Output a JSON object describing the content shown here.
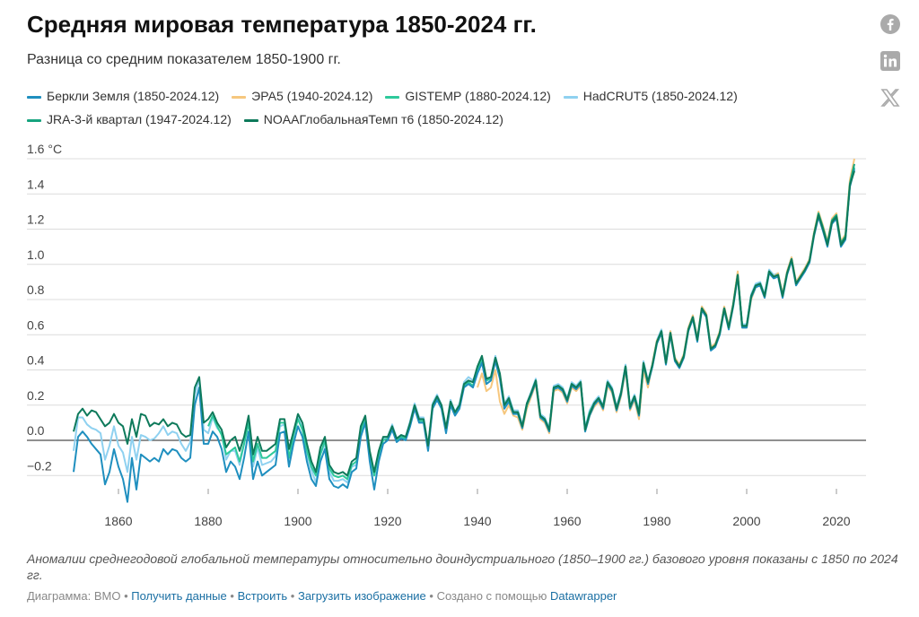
{
  "title": "Средняя мировая температура 1850-2024 гг.",
  "subtitle": "Разница со средним показателем 1850-1900 гг.",
  "social": [
    {
      "icon": "facebook-icon"
    },
    {
      "icon": "linkedin-icon"
    },
    {
      "icon": "x-twitter-icon"
    }
  ],
  "note": "Аномалии среднегодовой глобальной температуры относительно доиндустриального (1850–1900 гг.) базового уровня показаны с 1850 по 2024 гг.",
  "footer": {
    "source": "Диаграмма: ВМО",
    "get_data": "Получить данные",
    "embed": "Встроить",
    "download": "Загрузить изображение",
    "created_with": "Создано с помощью",
    "datawrapper": "Datawrapper",
    "sep": "•"
  },
  "chart_data": {
    "type": "line",
    "title": "Средняя мировая температура 1850-2024 гг.",
    "subtitle": "Разница со средним показателем 1850-1900 гг.",
    "ylabel_unit": "°C",
    "xlim": [
      1850,
      2024
    ],
    "ylim": [
      -0.3,
      1.6
    ],
    "y_ticks": [
      -0.2,
      0.0,
      0.2,
      0.4,
      0.6,
      0.8,
      1.0,
      1.2,
      1.4,
      1.6
    ],
    "y_tick_labels": [
      "−0.2",
      "0.0",
      "0.2",
      "0.4",
      "0.6",
      "0.8",
      "1.0",
      "1.2",
      "1.4",
      "1.6 °C"
    ],
    "x_ticks": [
      1860,
      1880,
      1900,
      1920,
      1940,
      1960,
      1980,
      2000,
      2020
    ],
    "x_tick_labels": [
      "1860",
      "1880",
      "1900",
      "1920",
      "1940",
      "1960",
      "1980",
      "2000",
      "2020"
    ],
    "grid": true,
    "legend_placement": "top",
    "series": [
      {
        "name": "Беркли Земля (1850-2024.12)",
        "color": "#1f8fbf",
        "start": 1850,
        "values": [
          -0.18,
          0.02,
          0.05,
          0.02,
          -0.02,
          -0.05,
          -0.08,
          -0.25,
          -0.18,
          -0.05,
          -0.15,
          -0.22,
          -0.35,
          -0.1,
          -0.28,
          -0.08,
          -0.1,
          -0.12,
          -0.1,
          -0.12,
          -0.05,
          -0.08,
          -0.05,
          -0.06,
          -0.1,
          -0.12,
          -0.1,
          0.2,
          0.3,
          -0.02,
          -0.02,
          0.05,
          0.02,
          -0.05,
          -0.18,
          -0.12,
          -0.15,
          -0.22,
          -0.1,
          0.05,
          -0.22,
          -0.12,
          -0.2,
          -0.18,
          -0.16,
          -0.14,
          0.04,
          0.05,
          -0.15,
          -0.02,
          0.08,
          0.02,
          -0.12,
          -0.22,
          -0.26,
          -0.12,
          -0.05,
          -0.22,
          -0.26,
          -0.27,
          -0.25,
          -0.27,
          -0.18,
          -0.16,
          0.02,
          0.1,
          -0.12,
          -0.28,
          -0.12,
          -0.02,
          0.0,
          0.06,
          -0.01,
          0.01,
          0.0,
          0.08,
          0.18,
          0.1,
          0.1,
          -0.06,
          0.18,
          0.23,
          0.18,
          0.04,
          0.2,
          0.14,
          0.18,
          0.3,
          0.32,
          0.3,
          0.38,
          0.44,
          0.32,
          0.34,
          0.45,
          0.35,
          0.18,
          0.22,
          0.15,
          0.15,
          0.07,
          0.2,
          0.26,
          0.33,
          0.13,
          0.11,
          0.05,
          0.29,
          0.3,
          0.28,
          0.22,
          0.31,
          0.29,
          0.32,
          0.05,
          0.14,
          0.2,
          0.23,
          0.18,
          0.32,
          0.28,
          0.17,
          0.26,
          0.41,
          0.18,
          0.24,
          0.14,
          0.43,
          0.32,
          0.42,
          0.55,
          0.61,
          0.43,
          0.6,
          0.45,
          0.41,
          0.47,
          0.62,
          0.69,
          0.56,
          0.74,
          0.7,
          0.51,
          0.53,
          0.6,
          0.74,
          0.63,
          0.76,
          0.93,
          0.64,
          0.64,
          0.81,
          0.87,
          0.88,
          0.81,
          0.95,
          0.92,
          0.93,
          0.81,
          0.94,
          1.02,
          0.88,
          0.92,
          0.96,
          1.01,
          1.16,
          1.27,
          1.19,
          1.1,
          1.23,
          1.26,
          1.1,
          1.14,
          1.44,
          1.54
        ]
      },
      {
        "name": "ЭРА5 (1940-2024.12)",
        "color": "#f6c77e",
        "start": 1940,
        "values": [
          0.3,
          0.38,
          0.28,
          0.3,
          0.4,
          0.22,
          0.15,
          0.2,
          0.14,
          0.13,
          0.06,
          0.18,
          0.25,
          0.32,
          0.12,
          0.1,
          0.04,
          0.28,
          0.29,
          0.27,
          0.21,
          0.3,
          0.28,
          0.31,
          0.05,
          0.14,
          0.19,
          0.22,
          0.17,
          0.31,
          0.27,
          0.16,
          0.25,
          0.4,
          0.17,
          0.23,
          0.12,
          0.4,
          0.3,
          0.44,
          0.57,
          0.6,
          0.45,
          0.62,
          0.47,
          0.43,
          0.49,
          0.64,
          0.71,
          0.58,
          0.76,
          0.72,
          0.53,
          0.55,
          0.62,
          0.76,
          0.65,
          0.78,
          0.96,
          0.64,
          0.64,
          0.8,
          0.87,
          0.88,
          0.81,
          0.96,
          0.93,
          0.95,
          0.83,
          0.96,
          1.04,
          0.9,
          0.94,
          0.98,
          1.03,
          1.18,
          1.3,
          1.22,
          1.13,
          1.26,
          1.29,
          1.13,
          1.17,
          1.48,
          1.6
        ]
      },
      {
        "name": "GISTEMP (1880-2024.12)",
        "color": "#2ec99b",
        "start": 1880,
        "values": [
          0.08,
          0.14,
          0.08,
          0.03,
          -0.08,
          -0.06,
          -0.04,
          -0.12,
          -0.02,
          0.1,
          -0.12,
          -0.02,
          -0.1,
          -0.1,
          -0.08,
          -0.06,
          0.1,
          0.1,
          -0.1,
          0.03,
          0.12,
          0.06,
          -0.06,
          -0.15,
          -0.2,
          -0.08,
          0.0,
          -0.16,
          -0.2,
          -0.21,
          -0.2,
          -0.22,
          -0.14,
          -0.12,
          0.05,
          0.12,
          -0.08,
          -0.2,
          -0.08,
          0.0,
          0.01,
          0.07,
          0.0,
          0.02,
          0.01,
          0.09,
          0.19,
          0.11,
          0.11,
          -0.05,
          0.19,
          0.24,
          0.19,
          0.05,
          0.21,
          0.15,
          0.19,
          0.31,
          0.33,
          0.31,
          0.4,
          0.46,
          0.34,
          0.35,
          0.46,
          0.36,
          0.2,
          0.23,
          0.16,
          0.16,
          0.08,
          0.2,
          0.27,
          0.34,
          0.14,
          0.12,
          0.06,
          0.3,
          0.31,
          0.29,
          0.23,
          0.32,
          0.3,
          0.33,
          0.06,
          0.16,
          0.21,
          0.24,
          0.19,
          0.33,
          0.29,
          0.18,
          0.27,
          0.42,
          0.19,
          0.25,
          0.16,
          0.44,
          0.33,
          0.42,
          0.56,
          0.62,
          0.44,
          0.61,
          0.46,
          0.42,
          0.48,
          0.63,
          0.7,
          0.57,
          0.75,
          0.71,
          0.52,
          0.54,
          0.61,
          0.75,
          0.64,
          0.77,
          0.94,
          0.65,
          0.65,
          0.82,
          0.88,
          0.89,
          0.82,
          0.96,
          0.93,
          0.94,
          0.82,
          0.95,
          1.03,
          0.89,
          0.93,
          0.97,
          1.02,
          1.17,
          1.28,
          1.2,
          1.11,
          1.24,
          1.27,
          1.11,
          1.15,
          1.45,
          1.55
        ]
      },
      {
        "name": "HadCRUT5 (1850-2024.12)",
        "color": "#8fd1f0",
        "start": 1850,
        "values": [
          -0.06,
          0.13,
          0.13,
          0.09,
          0.07,
          0.06,
          0.04,
          -0.11,
          -0.03,
          0.08,
          -0.03,
          -0.07,
          -0.18,
          0.02,
          -0.11,
          0.03,
          0.02,
          0.0,
          0.01,
          0.04,
          0.08,
          0.03,
          0.05,
          0.04,
          -0.02,
          -0.06,
          -0.01,
          0.26,
          0.35,
          0.06,
          0.04,
          0.13,
          0.07,
          0.04,
          -0.11,
          -0.06,
          -0.06,
          -0.14,
          -0.02,
          0.11,
          -0.15,
          -0.04,
          -0.14,
          -0.13,
          -0.12,
          -0.09,
          0.08,
          0.09,
          -0.13,
          0.02,
          0.13,
          0.07,
          -0.08,
          -0.17,
          -0.24,
          -0.08,
          -0.02,
          -0.18,
          -0.23,
          -0.23,
          -0.22,
          -0.24,
          -0.15,
          -0.14,
          0.06,
          0.14,
          -0.09,
          -0.2,
          -0.07,
          0.01,
          0.02,
          0.09,
          0.01,
          0.03,
          0.02,
          0.11,
          0.21,
          0.13,
          0.13,
          -0.04,
          0.21,
          0.26,
          0.2,
          0.07,
          0.23,
          0.16,
          0.21,
          0.33,
          0.36,
          0.34,
          0.4,
          0.46,
          0.34,
          0.36,
          0.48,
          0.37,
          0.21,
          0.25,
          0.17,
          0.17,
          0.09,
          0.21,
          0.28,
          0.35,
          0.15,
          0.13,
          0.07,
          0.31,
          0.32,
          0.3,
          0.24,
          0.33,
          0.31,
          0.34,
          0.07,
          0.17,
          0.22,
          0.25,
          0.2,
          0.34,
          0.3,
          0.19,
          0.28,
          0.43,
          0.2,
          0.26,
          0.17,
          0.45,
          0.34,
          0.43,
          0.57,
          0.63,
          0.45,
          0.62,
          0.47,
          0.43,
          0.49,
          0.64,
          0.71,
          0.58,
          0.76,
          0.72,
          0.53,
          0.55,
          0.62,
          0.76,
          0.65,
          0.78,
          0.95,
          0.66,
          0.66,
          0.83,
          0.89,
          0.9,
          0.83,
          0.97,
          0.94,
          0.95,
          0.83,
          0.96,
          1.04,
          0.9,
          0.94,
          0.98,
          1.03,
          1.18,
          1.29,
          1.21,
          1.12,
          1.25,
          1.28,
          1.12,
          1.16,
          1.46,
          1.55
        ]
      },
      {
        "name": "JRA-3-й квартал (1947-2024.12)",
        "color": "#17a47f",
        "start": 1947,
        "values": [
          0.23,
          0.16,
          0.16,
          0.08,
          0.2,
          0.27,
          0.34,
          0.14,
          0.12,
          0.06,
          0.3,
          0.31,
          0.29,
          0.23,
          0.32,
          0.3,
          0.33,
          0.06,
          0.15,
          0.21,
          0.24,
          0.19,
          0.33,
          0.29,
          0.18,
          0.27,
          0.42,
          0.19,
          0.25,
          0.15,
          0.43,
          0.33,
          0.43,
          0.56,
          0.62,
          0.44,
          0.61,
          0.46,
          0.42,
          0.48,
          0.63,
          0.7,
          0.57,
          0.75,
          0.71,
          0.52,
          0.54,
          0.61,
          0.75,
          0.64,
          0.77,
          0.94,
          0.65,
          0.65,
          0.82,
          0.88,
          0.89,
          0.82,
          0.96,
          0.93,
          0.94,
          0.82,
          0.95,
          1.03,
          0.89,
          0.93,
          0.97,
          1.02,
          1.17,
          1.29,
          1.21,
          1.12,
          1.25,
          1.28,
          1.12,
          1.16,
          1.46,
          1.57
        ]
      },
      {
        "name": "NOAAГлобальнаяТемп т6 (1850-2024.12)",
        "color": "#0e7a5b",
        "start": 1850,
        "values": [
          0.05,
          0.15,
          0.18,
          0.14,
          0.17,
          0.16,
          0.12,
          0.08,
          0.1,
          0.15,
          0.1,
          0.08,
          -0.02,
          0.12,
          0.02,
          0.15,
          0.14,
          0.08,
          0.1,
          0.09,
          0.12,
          0.08,
          0.1,
          0.09,
          0.04,
          0.02,
          0.03,
          0.3,
          0.36,
          0.1,
          0.12,
          0.16,
          0.1,
          0.06,
          -0.04,
          0.0,
          0.02,
          -0.06,
          0.02,
          0.14,
          -0.08,
          0.02,
          -0.06,
          -0.06,
          -0.04,
          -0.02,
          0.12,
          0.12,
          -0.05,
          0.05,
          0.15,
          0.1,
          -0.02,
          -0.12,
          -0.18,
          -0.04,
          0.02,
          -0.14,
          -0.18,
          -0.19,
          -0.18,
          -0.2,
          -0.12,
          -0.1,
          0.08,
          0.14,
          -0.06,
          -0.18,
          -0.06,
          0.02,
          0.02,
          0.08,
          0.01,
          0.03,
          0.02,
          0.1,
          0.2,
          0.12,
          0.12,
          -0.03,
          0.2,
          0.25,
          0.2,
          0.07,
          0.22,
          0.16,
          0.2,
          0.32,
          0.34,
          0.33,
          0.42,
          0.48,
          0.35,
          0.36,
          0.47,
          0.38,
          0.2,
          0.24,
          0.16,
          0.16,
          0.08,
          0.21,
          0.27,
          0.34,
          0.14,
          0.12,
          0.06,
          0.3,
          0.31,
          0.29,
          0.23,
          0.32,
          0.3,
          0.33,
          0.06,
          0.15,
          0.21,
          0.24,
          0.19,
          0.33,
          0.29,
          0.18,
          0.27,
          0.42,
          0.19,
          0.25,
          0.15,
          0.44,
          0.33,
          0.43,
          0.56,
          0.62,
          0.44,
          0.61,
          0.46,
          0.42,
          0.48,
          0.63,
          0.7,
          0.57,
          0.75,
          0.71,
          0.52,
          0.54,
          0.61,
          0.75,
          0.64,
          0.77,
          0.94,
          0.65,
          0.65,
          0.82,
          0.88,
          0.89,
          0.82,
          0.96,
          0.93,
          0.94,
          0.82,
          0.95,
          1.03,
          0.89,
          0.93,
          0.97,
          1.02,
          1.17,
          1.28,
          1.2,
          1.11,
          1.24,
          1.27,
          1.11,
          1.15,
          1.45,
          1.53
        ]
      }
    ]
  }
}
